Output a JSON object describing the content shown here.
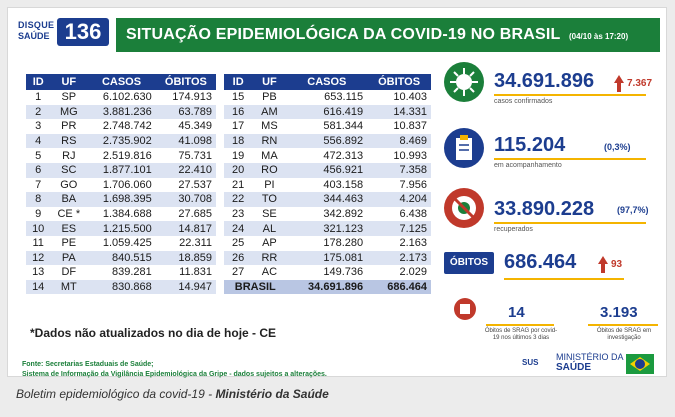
{
  "logo": {
    "line1": "DISQUE",
    "line2": "SAÚDE",
    "number": "136"
  },
  "header": {
    "title": "SITUAÇÃO EPIDEMIOLÓGICA DA COVID-19 NO BRASIL",
    "date": "(04/10 às 17:20)"
  },
  "table_headers": {
    "id": "ID",
    "uf": "UF",
    "casos": "CASOS",
    "obitos": "ÓBITOS"
  },
  "rows_left": [
    {
      "id": "1",
      "uf": "SP",
      "casos": "6.102.630",
      "obitos": "174.913"
    },
    {
      "id": "2",
      "uf": "MG",
      "casos": "3.881.236",
      "obitos": "63.789"
    },
    {
      "id": "3",
      "uf": "PR",
      "casos": "2.748.742",
      "obitos": "45.349"
    },
    {
      "id": "4",
      "uf": "RS",
      "casos": "2.735.902",
      "obitos": "41.098"
    },
    {
      "id": "5",
      "uf": "RJ",
      "casos": "2.519.816",
      "obitos": "75.731"
    },
    {
      "id": "6",
      "uf": "SC",
      "casos": "1.877.101",
      "obitos": "22.410"
    },
    {
      "id": "7",
      "uf": "GO",
      "casos": "1.706.060",
      "obitos": "27.537"
    },
    {
      "id": "8",
      "uf": "BA",
      "casos": "1.698.395",
      "obitos": "30.708"
    },
    {
      "id": "9",
      "uf": "CE *",
      "casos": "1.384.688",
      "obitos": "27.685"
    },
    {
      "id": "10",
      "uf": "ES",
      "casos": "1.215.500",
      "obitos": "14.817"
    },
    {
      "id": "11",
      "uf": "PE",
      "casos": "1.059.425",
      "obitos": "22.311"
    },
    {
      "id": "12",
      "uf": "PA",
      "casos": "840.515",
      "obitos": "18.859"
    },
    {
      "id": "13",
      "uf": "DF",
      "casos": "839.281",
      "obitos": "11.831"
    },
    {
      "id": "14",
      "uf": "MT",
      "casos": "830.868",
      "obitos": "14.947"
    }
  ],
  "rows_right": [
    {
      "id": "15",
      "uf": "PB",
      "casos": "653.115",
      "obitos": "10.403"
    },
    {
      "id": "16",
      "uf": "AM",
      "casos": "616.419",
      "obitos": "14.331"
    },
    {
      "id": "17",
      "uf": "MS",
      "casos": "581.344",
      "obitos": "10.837"
    },
    {
      "id": "18",
      "uf": "RN",
      "casos": "556.892",
      "obitos": "8.469"
    },
    {
      "id": "19",
      "uf": "MA",
      "casos": "472.313",
      "obitos": "10.993"
    },
    {
      "id": "20",
      "uf": "RO",
      "casos": "456.921",
      "obitos": "7.358"
    },
    {
      "id": "21",
      "uf": "PI",
      "casos": "403.158",
      "obitos": "7.956"
    },
    {
      "id": "22",
      "uf": "TO",
      "casos": "344.463",
      "obitos": "4.204"
    },
    {
      "id": "23",
      "uf": "SE",
      "casos": "342.892",
      "obitos": "6.438"
    },
    {
      "id": "24",
      "uf": "AL",
      "casos": "321.123",
      "obitos": "7.125"
    },
    {
      "id": "25",
      "uf": "AP",
      "casos": "178.280",
      "obitos": "2.163"
    },
    {
      "id": "26",
      "uf": "RR",
      "casos": "175.081",
      "obitos": "2.173"
    },
    {
      "id": "27",
      "uf": "AC",
      "casos": "149.736",
      "obitos": "2.029"
    }
  ],
  "total": {
    "label": "BRASIL",
    "casos": "34.691.896",
    "obitos": "686.464"
  },
  "note": "*Dados não atualizados no dia de hoje - CE",
  "source": {
    "line1": "Fonte: Secretarias Estaduais de Saúde;",
    "line2": "Sistema de Informação da Vigilância Epidemiológica da Gripe - dados sujeitos a alterações."
  },
  "stats": {
    "confirmados": {
      "value": "34.691.896",
      "delta": "7.367",
      "label": "casos confirmados",
      "icon": "virus-icon"
    },
    "acompanhamento": {
      "value": "115.204",
      "pct": "(0,3%)",
      "label": "em acompanhamento",
      "icon": "clipboard-icon"
    },
    "recuperados": {
      "value": "33.890.228",
      "pct": "(97,7%)",
      "label": "recuperados",
      "icon": "no-virus-icon"
    },
    "obitos": {
      "tag": "ÓBITOS",
      "value": "686.464",
      "delta": "93"
    }
  },
  "srag": {
    "a": {
      "value": "14",
      "label": "Óbitos de SRAG por covid-19 nos últimos 3 dias"
    },
    "b": {
      "value": "3.193",
      "label": "Óbitos de SRAG em investigação"
    }
  },
  "ministry": {
    "sus": "SUS",
    "line1": "MINISTÉRIO DA",
    "line2": "SAÚDE"
  },
  "caption": {
    "text": "Boletim epidemiológico da covid-19 - ",
    "bold": "Ministério da Saúde"
  },
  "colors": {
    "blue": "#1c3d8f",
    "green": "#1b7f3a",
    "red": "#c0392b",
    "yellow": "#f4b400"
  }
}
